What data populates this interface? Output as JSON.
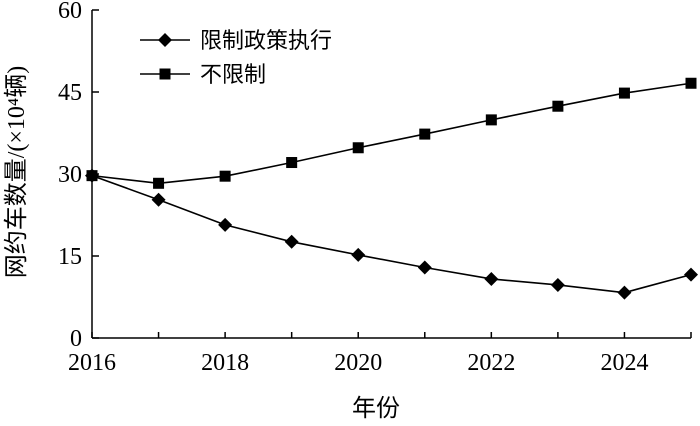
{
  "chart_data": {
    "type": "line",
    "title": "",
    "xlabel": "年份",
    "ylabel": "网约车数量/(×10⁴辆)",
    "x": [
      2016,
      2017,
      2018,
      2019,
      2020,
      2021,
      2022,
      2023,
      2024,
      2025
    ],
    "xlim": [
      2016,
      2025
    ],
    "ylim": [
      0,
      60
    ],
    "x_ticks": [
      "2016",
      "2018",
      "2020",
      "2022",
      "2024"
    ],
    "y_ticks": [
      "0",
      "15",
      "30",
      "45",
      "60"
    ],
    "legend_position": "top-left",
    "grid": false,
    "series": [
      {
        "name": "限制政策执行",
        "marker": "diamond",
        "color": "#000000",
        "values": [
          29.7,
          25.3,
          20.7,
          17.6,
          15.2,
          12.9,
          10.8,
          9.7,
          8.3,
          11.6
        ]
      },
      {
        "name": "不限制",
        "marker": "square",
        "color": "#000000",
        "values": [
          29.7,
          28.3,
          29.6,
          32.1,
          34.8,
          37.3,
          39.9,
          42.4,
          44.8,
          46.6
        ]
      }
    ]
  }
}
